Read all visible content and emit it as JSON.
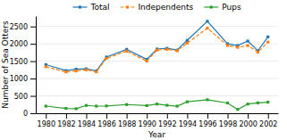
{
  "chart_data": {
    "type": "line",
    "x": [
      1980,
      1982,
      1983,
      1984,
      1985,
      1986,
      1988,
      1990,
      1991,
      1992,
      1993,
      1994,
      1996,
      1998,
      1999,
      2000,
      2001,
      2002
    ],
    "series": [
      {
        "name": "Total",
        "values": [
          1400,
          1230,
          1270,
          1280,
          1220,
          1620,
          1840,
          1550,
          1850,
          1870,
          1820,
          2100,
          2650,
          2000,
          1950,
          2080,
          1800,
          2200
        ],
        "line_style": "solid",
        "marker": "square"
      },
      {
        "name": "Independents",
        "values": [
          1340,
          1190,
          1220,
          1250,
          1190,
          1580,
          1790,
          1500,
          1820,
          1840,
          1800,
          2020,
          2450,
          1950,
          1900,
          1950,
          1760,
          2050
        ],
        "line_style": "dashed",
        "marker": "square"
      },
      {
        "name": "Pups",
        "values": [
          205,
          140,
          130,
          225,
          205,
          210,
          250,
          220,
          265,
          230,
          205,
          330,
          390,
          295,
          110,
          265,
          300,
          320
        ],
        "line_style": "solid",
        "marker": "square"
      }
    ],
    "xlabel": "Year",
    "ylabel": "Number of Sea Otters",
    "xlim": [
      1979,
      2003
    ],
    "xticks": [
      1980,
      1982,
      1984,
      1986,
      1988,
      1990,
      1992,
      1994,
      1996,
      1998,
      2000,
      2002
    ],
    "ylim": [
      0,
      2800
    ],
    "yticks": [
      0,
      500,
      1000,
      1500,
      2000,
      2500
    ],
    "grid": true,
    "legend": "top"
  }
}
